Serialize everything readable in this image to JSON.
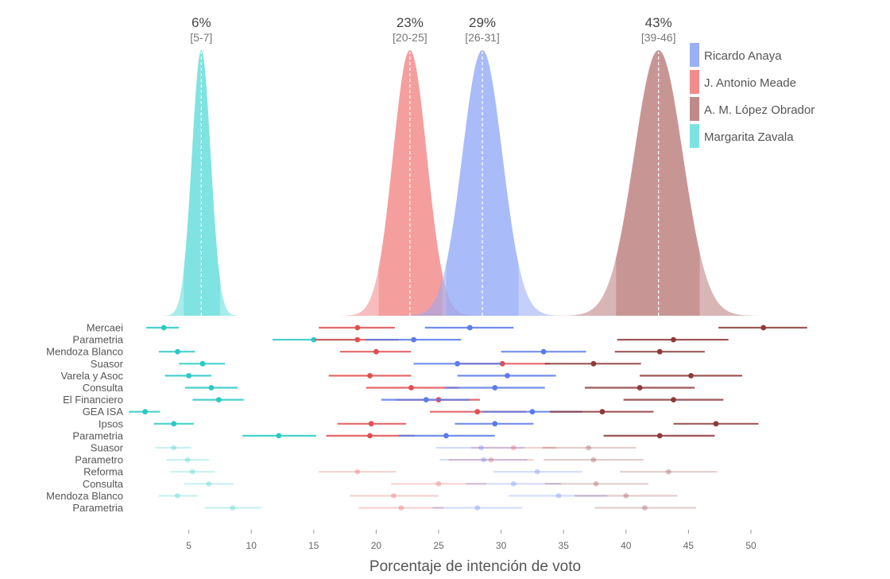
{
  "chart_data": {
    "type": "density-and-interval",
    "xlabel": "Porcentaje de intención de voto",
    "xlim": [
      0,
      55
    ],
    "x_ticks": [
      5,
      10,
      15,
      20,
      25,
      30,
      35,
      40,
      45,
      50
    ],
    "legend": {
      "placement": "top-right",
      "entries": [
        {
          "name": "Ricardo Anaya",
          "color": "#9AB0F5"
        },
        {
          "name": "J. Antonio Meade",
          "color": "#F28C8C"
        },
        {
          "name": "A. M. López Obrador",
          "color": "#C08A8A"
        },
        {
          "name": "Margarita Zavala",
          "color": "#7EE3E0"
        }
      ]
    },
    "candidates": [
      {
        "name": "Margarita Zavala",
        "color": "#5FDDD8",
        "dark": "#2CC9C3",
        "mean": 6,
        "lo": 4.6,
        "hi": 7.5,
        "sd": 0.75,
        "pct_label": "6%",
        "range_label": "[5-7]",
        "x_from": 1.7,
        "x_to": 10.7
      },
      {
        "name": "J. Antonio Meade",
        "color": "#F28585",
        "dark": "#E05050",
        "mean": 22.7,
        "lo": 20.2,
        "hi": 25.3,
        "sd": 1.35,
        "pct_label": "23%",
        "range_label": "[20-25]",
        "x_from": 14.6,
        "x_to": 30.5
      },
      {
        "name": "Ricardo Anaya",
        "color": "#93A9F5",
        "dark": "#5B7BE8",
        "mean": 28.5,
        "lo": 25.6,
        "hi": 31.4,
        "sd": 1.6,
        "pct_label": "29%",
        "range_label": "[26-31]",
        "x_from": 21.5,
        "x_to": 37.0
      },
      {
        "name": "A. M. López Obrador",
        "color": "#B97A7A",
        "dark": "#8E3A3A",
        "mean": 42.6,
        "lo": 39.2,
        "hi": 45.9,
        "sd": 1.95,
        "pct_label": "43%",
        "range_label": "[39-46]",
        "x_from": 33.5,
        "x_to": 52.9
      }
    ],
    "polls": [
      {
        "name": "Mercaei",
        "faded": false,
        "est": {
          "Margarita Zavala": [
            3,
            1.6,
            4.2
          ],
          "J. Antonio Meade": [
            18.5,
            15.4,
            21.5
          ],
          "Ricardo Anaya": [
            27.5,
            23.9,
            31
          ],
          "A. M. López Obrador": [
            51,
            47.4,
            54.5
          ]
        }
      },
      {
        "name": "Parametria",
        "faded": false,
        "est": {
          "Margarita Zavala": [
            15,
            11.7,
            18.5
          ],
          "J. Antonio Meade": [
            18.5,
            15.1,
            21.8
          ],
          "Ricardo Anaya": [
            23,
            19.2,
            26.8
          ],
          "A. M. López Obrador": [
            43.8,
            39.3,
            48.2
          ]
        }
      },
      {
        "name": "Mendoza Blanco",
        "faded": false,
        "est": {
          "Margarita Zavala": [
            4.1,
            2.6,
            5.5
          ],
          "J. Antonio Meade": [
            20,
            17.1,
            22.8
          ],
          "Ricardo Anaya": [
            33.4,
            30,
            36.8
          ],
          "A. M. López Obrador": [
            42.7,
            39.1,
            46.3
          ]
        }
      },
      {
        "name": "Suasor",
        "faded": false,
        "est": {
          "Margarita Zavala": [
            6.1,
            4.2,
            7.9
          ],
          "J. Antonio Meade": [
            30.1,
            26.5,
            33.9
          ],
          "Ricardo Anaya": [
            26.5,
            23,
            30.1
          ],
          "A. M. López Obrador": [
            37.4,
            33.5,
            41.2
          ]
        }
      },
      {
        "name": "Varela y Asoc",
        "faded": false,
        "est": {
          "Margarita Zavala": [
            5,
            3.1,
            6.8
          ],
          "J. Antonio Meade": [
            19.5,
            16.2,
            22.8
          ],
          "Ricardo Anaya": [
            30.5,
            26.5,
            34.4
          ],
          "A. M. López Obrador": [
            45.2,
            41.1,
            49.3
          ]
        }
      },
      {
        "name": "Consulta",
        "faded": false,
        "est": {
          "Margarita Zavala": [
            6.8,
            4.7,
            8.9
          ],
          "J. Antonio Meade": [
            22.8,
            19.2,
            26.6
          ],
          "Ricardo Anaya": [
            29.5,
            25.5,
            33.5
          ],
          "A. M. López Obrador": [
            41.1,
            36.7,
            45.5
          ]
        }
      },
      {
        "name": "El Financiero",
        "faded": false,
        "est": {
          "Margarita Zavala": [
            7.4,
            5.3,
            9.4
          ],
          "J. Antonio Meade": [
            25,
            21.6,
            28.3
          ],
          "Ricardo Anaya": [
            24,
            20.4,
            27.5
          ],
          "A. M. López Obrador": [
            43.8,
            39.8,
            47.8
          ]
        }
      },
      {
        "name": "GEA ISA",
        "faded": false,
        "est": {
          "Margarita Zavala": [
            1.5,
            0.2,
            2.7
          ],
          "J. Antonio Meade": [
            28.1,
            24.3,
            32
          ],
          "Ricardo Anaya": [
            32.5,
            28.5,
            36.5
          ],
          "A. M. López Obrador": [
            38.1,
            33.9,
            42.2
          ]
        }
      },
      {
        "name": "Ipsos",
        "faded": false,
        "est": {
          "Margarita Zavala": [
            3.8,
            2.2,
            5.4
          ],
          "J. Antonio Meade": [
            19.6,
            16.9,
            22.4
          ],
          "Ricardo Anaya": [
            29.5,
            26.3,
            32.6
          ],
          "A. M. López Obrador": [
            47.2,
            43.8,
            50.6
          ]
        }
      },
      {
        "name": "Parametria",
        "faded": false,
        "est": {
          "Margarita Zavala": [
            12.2,
            9.3,
            15.2
          ],
          "J. Antonio Meade": [
            19.5,
            16,
            23.1
          ],
          "Ricardo Anaya": [
            25.6,
            21.8,
            29.5
          ],
          "A. M. López Obrador": [
            42.7,
            38.2,
            47.1
          ]
        }
      },
      {
        "name": "Suasor",
        "faded": true,
        "est": {
          "Margarita Zavala": [
            3.8,
            2.3,
            5.2
          ],
          "J. Antonio Meade": [
            31,
            27.6,
            34.4
          ],
          "Ricardo Anaya": [
            28.4,
            24.8,
            31.9
          ],
          "A. M. López Obrador": [
            37,
            33.3,
            40.8
          ]
        }
      },
      {
        "name": "Parametro",
        "faded": true,
        "est": {
          "Margarita Zavala": [
            4.9,
            3.2,
            6.6
          ],
          "J. Antonio Meade": [
            29.2,
            25.8,
            32.6
          ],
          "Ricardo Anaya": [
            28.6,
            25.1,
            32.1
          ],
          "A. M. López Obrador": [
            37.4,
            33.4,
            41.4
          ]
        }
      },
      {
        "name": "Reforma",
        "faded": true,
        "est": {
          "Margarita Zavala": [
            5.3,
            3.5,
            7.1
          ],
          "J. Antonio Meade": [
            18.5,
            15.4,
            21.6
          ],
          "Ricardo Anaya": [
            32.9,
            29.4,
            36.5
          ],
          "A. M. López Obrador": [
            43.4,
            39.5,
            47.3
          ]
        }
      },
      {
        "name": "Consulta",
        "faded": true,
        "est": {
          "Margarita Zavala": [
            6.6,
            4.6,
            8.6
          ],
          "J. Antonio Meade": [
            25,
            21.2,
            28.8
          ],
          "Ricardo Anaya": [
            31,
            27.2,
            34.8
          ],
          "A. M. López Obrador": [
            37.6,
            33.5,
            41.8
          ]
        }
      },
      {
        "name": "Mendoza Blanco",
        "faded": true,
        "est": {
          "Margarita Zavala": [
            4.1,
            2.6,
            5.7
          ],
          "J. Antonio Meade": [
            21.4,
            17.9,
            25
          ],
          "Ricardo Anaya": [
            34.6,
            30.6,
            38.5
          ],
          "A. M. López Obrador": [
            40,
            35.9,
            44.1
          ]
        }
      },
      {
        "name": "Parametria",
        "faded": true,
        "est": {
          "Margarita Zavala": [
            8.5,
            6.3,
            10.8
          ],
          "J. Antonio Meade": [
            22,
            18.6,
            25.4
          ],
          "Ricardo Anaya": [
            28.1,
            24.5,
            31.7
          ],
          "A. M. López Obrador": [
            41.5,
            37.5,
            45.6
          ]
        }
      }
    ]
  }
}
